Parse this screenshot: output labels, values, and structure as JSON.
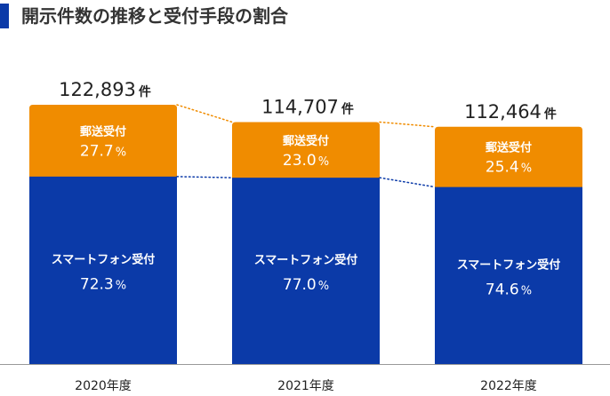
{
  "title": "開示件数の推移と受付手段の割合",
  "chart_data": {
    "type": "bar",
    "stacked": true,
    "categories": [
      "2020年度",
      "2021年度",
      "2022年度"
    ],
    "totals": [
      "122,893",
      "114,707",
      "112,464"
    ],
    "total_values": [
      122893,
      114707,
      112464
    ],
    "total_unit": "件",
    "percent_unit": "%",
    "series": [
      {
        "name": "スマートフォン受付",
        "color": "#0b3aa8",
        "values": [
          "72.3",
          "77.0",
          "74.6"
        ]
      },
      {
        "name": "郵送受付",
        "color": "#f08c00",
        "values": [
          "27.7",
          "23.0",
          "25.4"
        ]
      }
    ],
    "connector_colors": {
      "top": "#f08c00",
      "middle": "#0b3aa8"
    },
    "axis_color": "#999999"
  }
}
